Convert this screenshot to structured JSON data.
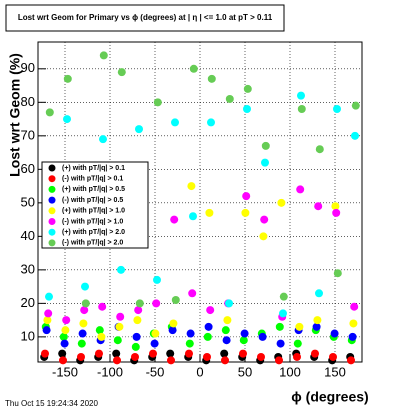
{
  "chart_data": {
    "type": "scatter",
    "title": "Lost wrt Geom for Primary vs ϕ (degrees) at | η | <= 1.0 at pT > 0.11",
    "x_label": "ϕ (degrees)",
    "y_label": "Lost wrt Geom (%)",
    "footer": "Thu Oct 15 19:24:34 2020",
    "x": [
      -170,
      -150,
      -130,
      -110,
      -90,
      -70,
      -50,
      -30,
      -10,
      10,
      30,
      50,
      70,
      90,
      110,
      130,
      150,
      170
    ],
    "series": [
      {
        "name": "(+) with pT/|q| > 0.1",
        "color": "#000000",
        "values": [
          4,
          5,
          3,
          4,
          5,
          3,
          4,
          5,
          4,
          3,
          5,
          4,
          3,
          4,
          5,
          4,
          3,
          4
        ]
      },
      {
        "name": "(-) with pT/|q| > 0.1",
        "color": "#ff0000",
        "values": [
          5,
          3,
          4,
          5,
          3,
          4,
          5,
          3,
          5,
          4,
          3,
          5,
          4,
          3,
          4,
          5,
          4,
          3
        ]
      },
      {
        "name": "(+) with pT/|q| > 0.5",
        "color": "#00ff00",
        "values": [
          13,
          10,
          8,
          12,
          9,
          7,
          11,
          13,
          8,
          10,
          12,
          9,
          11,
          13,
          8,
          12,
          10,
          9
        ]
      },
      {
        "name": "(-) with pT/|q| > 0.5",
        "color": "#0000ff",
        "values": [
          12,
          8,
          11,
          9,
          13,
          10,
          8,
          12,
          11,
          13,
          9,
          11,
          10,
          8,
          12,
          13,
          11,
          10
        ]
      },
      {
        "name": "(+) with pT/|q| > 1.0",
        "color": "#ffff00",
        "values": [
          15,
          12,
          14,
          10,
          13,
          15,
          11,
          14,
          55,
          47,
          15,
          47,
          40,
          50,
          13,
          15,
          49,
          14
        ]
      },
      {
        "name": "(-) with pT/|q| > 1.0",
        "color": "#ff00ff",
        "values": [
          17,
          15,
          18,
          19,
          16,
          18,
          20,
          45,
          23,
          18,
          20,
          52,
          45,
          16,
          54,
          49,
          47,
          19
        ]
      },
      {
        "name": "(+) with pT/|q| > 2.0",
        "color": "#00ffff",
        "values": [
          22,
          75,
          25,
          69,
          30,
          72,
          27,
          74,
          46,
          74,
          20,
          78,
          62,
          17,
          82,
          23,
          78,
          70
        ]
      },
      {
        "name": "(-) with pT/|q| > 2.0",
        "color": "#66cc55",
        "values": [
          77,
          87,
          20,
          94,
          89,
          20,
          80,
          21,
          90,
          87,
          81,
          84,
          67,
          22,
          78,
          66,
          29,
          79
        ]
      }
    ],
    "xlim": [
      -180,
      180
    ],
    "xticks": [
      -150,
      -100,
      -50,
      0,
      50,
      100,
      150
    ],
    "ylim": [
      2.5,
      98
    ],
    "yticks": [
      10,
      20,
      30,
      40,
      50,
      60,
      70,
      80,
      90
    ],
    "grid": true
  }
}
